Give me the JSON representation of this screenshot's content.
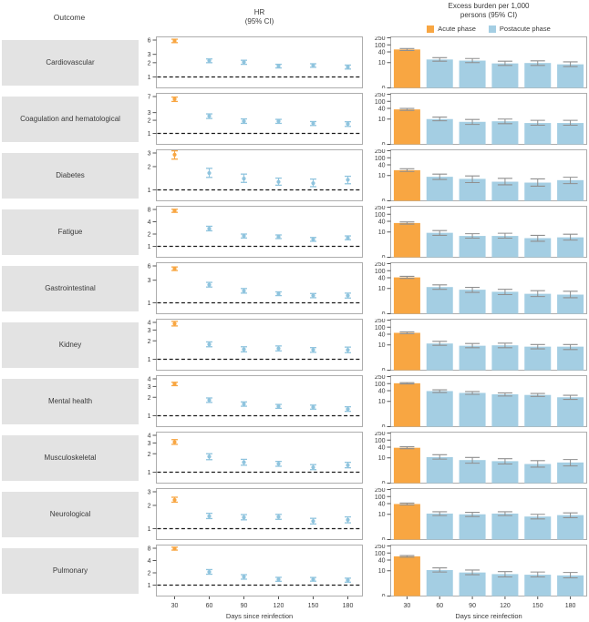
{
  "header": {
    "outcome_label": "Outcome",
    "hr_title_line1": "HR",
    "hr_title_line2": "(95% CI)",
    "burden_title_line1": "Excess burden per 1,000",
    "burden_title_line2": "persons (95% CI)",
    "legend": [
      {
        "label": "Acute phase",
        "color": "#F8A642"
      },
      {
        "label": "Postacute phase",
        "color": "#A4CEE3"
      }
    ]
  },
  "colors": {
    "acute": "#F8A642",
    "postacute": "#A4CEE3",
    "postacute_point": "#8FC4DE",
    "error_gray": "#8f8f8f",
    "frame": "#adadad",
    "tick": "#555555",
    "text": "#3a3a3a",
    "reference_line": "#1a1a1a",
    "label_box_bg": "#e3e3e3"
  },
  "x_axis": {
    "ticks": [
      30,
      60,
      90,
      120,
      150,
      180
    ],
    "label": "Days since reinfection"
  },
  "burden_axis": {
    "ticks": [
      250,
      100,
      40,
      10,
      0
    ],
    "scale": "log",
    "floor": 0.45,
    "top": 250
  },
  "chart_data": [
    {
      "outcome": "Cardiovascular",
      "hr": {
        "type": "scatter",
        "ymax": 6,
        "yticks": [
          6,
          3,
          2,
          1
        ],
        "points": [
          [
            5.75,
            5.3,
            6.25
          ],
          [
            2.2,
            2.0,
            2.4
          ],
          [
            2.05,
            1.85,
            2.25
          ],
          [
            1.7,
            1.55,
            1.85
          ],
          [
            1.75,
            1.6,
            1.9
          ],
          [
            1.62,
            1.47,
            1.78
          ]
        ]
      },
      "burden": {
        "type": "bar",
        "bars": [
          [
            55,
            48,
            62
          ],
          [
            15,
            12,
            19
          ],
          [
            13,
            10,
            17
          ],
          [
            9,
            7,
            12
          ],
          [
            9.5,
            7,
            12.5
          ],
          [
            8,
            6,
            11
          ]
        ]
      }
    },
    {
      "outcome": "Coagulation and hematological",
      "hr": {
        "type": "scatter",
        "ymax": 7,
        "yticks": [
          7,
          3,
          2,
          1
        ],
        "points": [
          [
            6.1,
            5.4,
            6.8
          ],
          [
            2.5,
            2.2,
            2.8
          ],
          [
            1.9,
            1.7,
            2.15
          ],
          [
            1.9,
            1.7,
            2.1
          ],
          [
            1.7,
            1.52,
            1.87
          ],
          [
            1.65,
            1.45,
            1.85
          ]
        ]
      },
      "burden": {
        "type": "bar",
        "bars": [
          [
            35,
            31,
            40
          ],
          [
            10,
            8,
            13
          ],
          [
            7,
            5,
            9.5
          ],
          [
            7.5,
            5.5,
            10
          ],
          [
            6,
            4.5,
            8.5
          ],
          [
            6,
            4.5,
            8.5
          ]
        ]
      }
    },
    {
      "outcome": "Diabetes",
      "hr": {
        "type": "scatter",
        "ymax": 3,
        "yticks": [
          3,
          2,
          1
        ],
        "points": [
          [
            2.85,
            2.5,
            3.2
          ],
          [
            1.65,
            1.45,
            1.9
          ],
          [
            1.4,
            1.25,
            1.6
          ],
          [
            1.27,
            1.15,
            1.42
          ],
          [
            1.22,
            1.1,
            1.38
          ],
          [
            1.35,
            1.2,
            1.5
          ]
        ]
      },
      "burden": {
        "type": "bar",
        "bars": [
          [
            20,
            17,
            24
          ],
          [
            8.5,
            6,
            12
          ],
          [
            6.5,
            4,
            9.5
          ],
          [
            4.5,
            3,
            7
          ],
          [
            4,
            2.5,
            6.5
          ],
          [
            5.5,
            3.5,
            8
          ]
        ]
      }
    },
    {
      "outcome": "Fatigue",
      "hr": {
        "type": "scatter",
        "ymax": 8,
        "yticks": [
          8,
          4,
          2,
          1
        ],
        "points": [
          [
            7.4,
            6.8,
            8.1
          ],
          [
            2.7,
            2.4,
            3.1
          ],
          [
            1.8,
            1.6,
            2.0
          ],
          [
            1.7,
            1.55,
            1.9
          ],
          [
            1.48,
            1.33,
            1.65
          ],
          [
            1.6,
            1.45,
            1.8
          ]
        ]
      },
      "burden": {
        "type": "bar",
        "bars": [
          [
            32,
            28,
            37
          ],
          [
            9,
            6.5,
            12
          ],
          [
            6,
            4.5,
            8
          ],
          [
            6,
            4.5,
            8.5
          ],
          [
            4.5,
            3,
            6.5
          ],
          [
            5,
            3.5,
            7.5
          ]
        ]
      }
    },
    {
      "outcome": "Gastrointestinal",
      "hr": {
        "type": "scatter",
        "ymax": 6,
        "yticks": [
          6,
          3,
          1
        ],
        "points": [
          [
            5.2,
            4.8,
            5.7
          ],
          [
            2.4,
            2.15,
            2.7
          ],
          [
            1.78,
            1.6,
            2.0
          ],
          [
            1.55,
            1.42,
            1.7
          ],
          [
            1.42,
            1.28,
            1.57
          ],
          [
            1.42,
            1.26,
            1.6
          ]
        ]
      },
      "burden": {
        "type": "bar",
        "bars": [
          [
            42,
            37,
            48
          ],
          [
            12,
            9,
            16
          ],
          [
            8.5,
            6,
            11.5
          ],
          [
            6.5,
            4.5,
            9
          ],
          [
            5,
            3.5,
            7.5
          ],
          [
            4.5,
            3,
            7
          ]
        ]
      }
    },
    {
      "outcome": "Kidney",
      "hr": {
        "type": "scatter",
        "ymax": 4,
        "yticks": [
          4,
          3,
          2,
          1
        ],
        "points": [
          [
            3.8,
            3.5,
            4.15
          ],
          [
            1.75,
            1.6,
            1.92
          ],
          [
            1.45,
            1.32,
            1.6
          ],
          [
            1.5,
            1.37,
            1.65
          ],
          [
            1.42,
            1.3,
            1.55
          ],
          [
            1.42,
            1.28,
            1.58
          ]
        ]
      },
      "burden": {
        "type": "bar",
        "bars": [
          [
            48,
            43,
            54
          ],
          [
            12,
            9.5,
            16
          ],
          [
            9,
            7,
            12
          ],
          [
            9.5,
            7,
            12.5
          ],
          [
            8,
            6,
            10.5
          ],
          [
            8,
            5.5,
            10.5
          ]
        ]
      }
    },
    {
      "outcome": "Mental health",
      "hr": {
        "type": "scatter",
        "ymax": 4,
        "yticks": [
          4,
          3,
          2,
          1
        ],
        "points": [
          [
            3.3,
            3.1,
            3.52
          ],
          [
            1.8,
            1.65,
            1.95
          ],
          [
            1.55,
            1.43,
            1.68
          ],
          [
            1.42,
            1.32,
            1.53
          ],
          [
            1.38,
            1.28,
            1.49
          ],
          [
            1.28,
            1.18,
            1.4
          ]
        ]
      },
      "burden": {
        "type": "bar",
        "bars": [
          [
            105,
            97,
            113
          ],
          [
            38,
            32,
            45
          ],
          [
            30,
            25,
            36
          ],
          [
            25,
            20,
            30
          ],
          [
            23,
            19,
            28
          ],
          [
            17,
            13,
            22
          ]
        ]
      }
    },
    {
      "outcome": "Musculoskeletal",
      "hr": {
        "type": "scatter",
        "ymax": 4,
        "yticks": [
          4,
          3,
          2,
          1
        ],
        "points": [
          [
            3.1,
            2.85,
            3.4
          ],
          [
            1.8,
            1.6,
            2.0
          ],
          [
            1.45,
            1.3,
            1.62
          ],
          [
            1.37,
            1.25,
            1.5
          ],
          [
            1.2,
            1.1,
            1.33
          ],
          [
            1.3,
            1.18,
            1.45
          ]
        ]
      },
      "burden": {
        "type": "bar",
        "bars": [
          [
            37,
            33,
            42
          ],
          [
            11,
            8.5,
            15
          ],
          [
            7.5,
            5,
            10.5
          ],
          [
            6.5,
            4.5,
            9
          ],
          [
            4.5,
            3,
            7
          ],
          [
            5.5,
            3.5,
            8
          ]
        ]
      }
    },
    {
      "outcome": "Neurological",
      "hr": {
        "type": "scatter",
        "ymax": 3,
        "yticks": [
          3,
          2,
          1
        ],
        "points": [
          [
            2.35,
            2.2,
            2.55
          ],
          [
            1.45,
            1.35,
            1.58
          ],
          [
            1.4,
            1.3,
            1.52
          ],
          [
            1.42,
            1.32,
            1.53
          ],
          [
            1.25,
            1.15,
            1.36
          ],
          [
            1.3,
            1.19,
            1.42
          ]
        ]
      },
      "burden": {
        "type": "bar",
        "bars": [
          [
            38,
            34,
            43
          ],
          [
            11,
            8.5,
            14
          ],
          [
            10,
            7.5,
            13
          ],
          [
            11,
            8.5,
            14
          ],
          [
            7.5,
            5.5,
            10
          ],
          [
            9,
            6.5,
            12
          ]
        ]
      }
    },
    {
      "outcome": "Pulmonary",
      "hr": {
        "type": "scatter",
        "ymax": 8,
        "yticks": [
          8,
          4,
          2,
          1
        ],
        "points": [
          [
            7.8,
            7.2,
            8.5
          ],
          [
            2.1,
            1.85,
            2.4
          ],
          [
            1.6,
            1.4,
            1.8
          ],
          [
            1.38,
            1.24,
            1.55
          ],
          [
            1.38,
            1.25,
            1.54
          ],
          [
            1.32,
            1.18,
            1.48
          ]
        ]
      },
      "burden": {
        "type": "bar",
        "bars": [
          [
            65,
            58,
            72
          ],
          [
            11,
            8.5,
            14.5
          ],
          [
            8,
            6,
            11
          ],
          [
            6.5,
            4.5,
            9
          ],
          [
            6,
            4.5,
            8.5
          ],
          [
            5.5,
            4,
            8
          ]
        ]
      }
    }
  ]
}
